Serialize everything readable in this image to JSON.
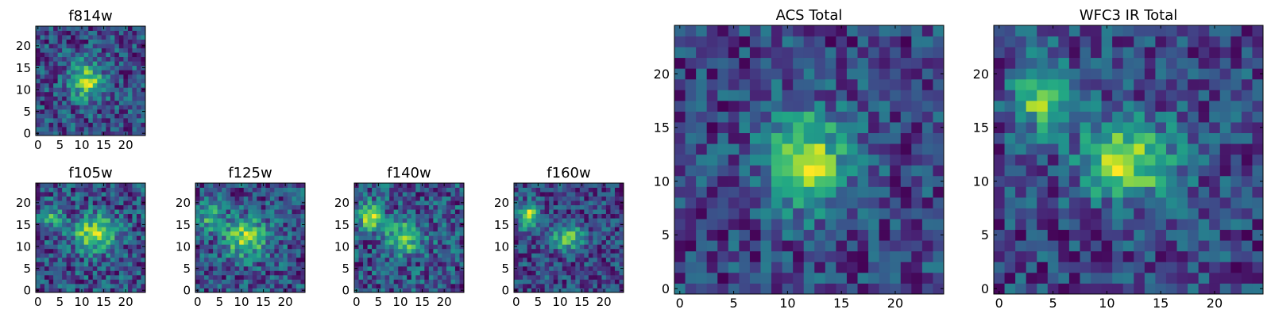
{
  "chart_data": [
    {
      "type": "heatmap",
      "title": "f814w",
      "colormap": "viridis",
      "grid_size": 25,
      "xlim": [
        0,
        24
      ],
      "ylim": [
        0,
        24
      ],
      "xticks": [
        0,
        5,
        10,
        15,
        20
      ],
      "yticks": [
        0,
        5,
        10,
        15,
        20
      ],
      "sources": [
        {
          "x": 11,
          "y": 12,
          "amp": 0.55,
          "sx": 2.6,
          "sy": 3.0
        }
      ],
      "noise": 0.22,
      "seed": 11
    },
    {
      "type": "heatmap",
      "title": "f105w",
      "colormap": "viridis",
      "grid_size": 25,
      "xlim": [
        0,
        24
      ],
      "ylim": [
        0,
        24
      ],
      "xticks": [
        0,
        5,
        10,
        15,
        20
      ],
      "yticks": [
        0,
        5,
        10,
        15,
        20
      ],
      "sources": [
        {
          "x": 13,
          "y": 13,
          "amp": 0.5,
          "sx": 3.2,
          "sy": 2.8
        },
        {
          "x": 3,
          "y": 17,
          "amp": 0.25,
          "sx": 1.8,
          "sy": 1.8
        }
      ],
      "noise": 0.2,
      "seed": 23
    },
    {
      "type": "heatmap",
      "title": "f125w",
      "colormap": "viridis",
      "grid_size": 25,
      "xlim": [
        0,
        24
      ],
      "ylim": [
        0,
        24
      ],
      "xticks": [
        0,
        5,
        10,
        15,
        20
      ],
      "yticks": [
        0,
        5,
        10,
        15,
        20
      ],
      "sources": [
        {
          "x": 11,
          "y": 12,
          "amp": 0.45,
          "sx": 3.5,
          "sy": 3.2
        },
        {
          "x": 3,
          "y": 17,
          "amp": 0.35,
          "sx": 2.0,
          "sy": 2.2
        }
      ],
      "noise": 0.2,
      "seed": 37
    },
    {
      "type": "heatmap",
      "title": "f140w",
      "colormap": "viridis",
      "grid_size": 25,
      "xlim": [
        0,
        24
      ],
      "ylim": [
        0,
        24
      ],
      "xticks": [
        0,
        5,
        10,
        15,
        20
      ],
      "yticks": [
        0,
        5,
        10,
        15,
        20
      ],
      "sources": [
        {
          "x": 11,
          "y": 12,
          "amp": 0.4,
          "sx": 3.0,
          "sy": 2.5
        },
        {
          "x": 3,
          "y": 17,
          "amp": 0.5,
          "sx": 1.8,
          "sy": 2.0
        }
      ],
      "noise": 0.2,
      "seed": 41
    },
    {
      "type": "heatmap",
      "title": "f160w",
      "colormap": "viridis",
      "grid_size": 25,
      "xlim": [
        0,
        24
      ],
      "ylim": [
        0,
        24
      ],
      "xticks": [
        0,
        5,
        10,
        15,
        20
      ],
      "yticks": [
        0,
        5,
        10,
        15,
        20
      ],
      "sources": [
        {
          "x": 12,
          "y": 12,
          "amp": 0.45,
          "sx": 2.6,
          "sy": 2.0
        },
        {
          "x": 3,
          "y": 17,
          "amp": 0.6,
          "sx": 1.7,
          "sy": 2.0
        }
      ],
      "noise": 0.2,
      "seed": 53
    },
    {
      "type": "heatmap",
      "title": "ACS Total",
      "colormap": "viridis",
      "grid_size": 25,
      "xlim": [
        0,
        24
      ],
      "ylim": [
        0,
        24
      ],
      "xticks": [
        0,
        5,
        10,
        15,
        20
      ],
      "yticks": [
        0,
        5,
        10,
        15,
        20
      ],
      "sources": [
        {
          "x": 12,
          "y": 12,
          "amp": 0.55,
          "sx": 2.6,
          "sy": 3.2
        }
      ],
      "noise": 0.18,
      "seed": 67
    },
    {
      "type": "heatmap",
      "title": "WFC3 IR Total",
      "colormap": "viridis",
      "grid_size": 25,
      "xlim": [
        0,
        24
      ],
      "ylim": [
        0,
        24
      ],
      "xticks": [
        0,
        5,
        10,
        15,
        20
      ],
      "yticks": [
        0,
        5,
        10,
        15,
        20
      ],
      "sources": [
        {
          "x": 12,
          "y": 12,
          "amp": 0.5,
          "sx": 3.0,
          "sy": 2.6
        },
        {
          "x": 4,
          "y": 18,
          "amp": 0.45,
          "sx": 1.8,
          "sy": 2.2
        }
      ],
      "noise": 0.16,
      "seed": 79
    }
  ]
}
